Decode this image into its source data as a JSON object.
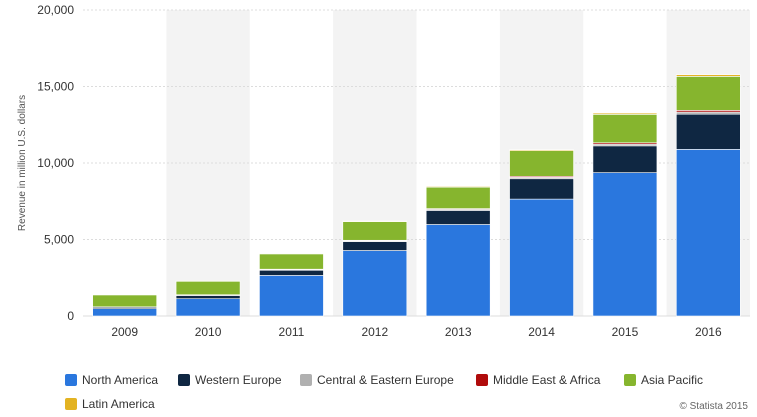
{
  "chart_data": {
    "type": "bar",
    "stacked": true,
    "categories": [
      "2009",
      "2010",
      "2011",
      "2012",
      "2013",
      "2014",
      "2015",
      "2016"
    ],
    "series": [
      {
        "name": "North America",
        "color": "#2a77de",
        "values": [
          480,
          1130,
          2650,
          4280,
          5980,
          7640,
          9370,
          10890
        ]
      },
      {
        "name": "Western Europe",
        "color": "#0f2742",
        "values": [
          90,
          210,
          340,
          580,
          920,
          1330,
          1750,
          2300
        ]
      },
      {
        "name": "Central & Eastern Europe",
        "color": "#b0b0b0",
        "values": [
          20,
          30,
          40,
          50,
          70,
          90,
          110,
          140
        ]
      },
      {
        "name": "Middle East & Africa",
        "color": "#b00b0b",
        "values": [
          10,
          20,
          30,
          40,
          50,
          70,
          90,
          110
        ]
      },
      {
        "name": "Asia Pacific",
        "color": "#86b52e",
        "values": [
          780,
          880,
          1000,
          1220,
          1400,
          1680,
          1860,
          2220
        ]
      },
      {
        "name": "Latin America",
        "color": "#e3b322",
        "values": [
          10,
          20,
          30,
          40,
          50,
          60,
          80,
          110
        ]
      }
    ],
    "ylabel": "Revenue in million U.S. dollars",
    "xlabel": "",
    "ylim": [
      0,
      20000
    ],
    "yticks": [
      0,
      5000,
      10000,
      15000,
      20000
    ],
    "ytick_labels": [
      "0",
      "5,000",
      "10,000",
      "15,000",
      "20,000"
    ],
    "grid": true,
    "legend_position": "bottom-left",
    "credit": "© Statista 2015"
  }
}
